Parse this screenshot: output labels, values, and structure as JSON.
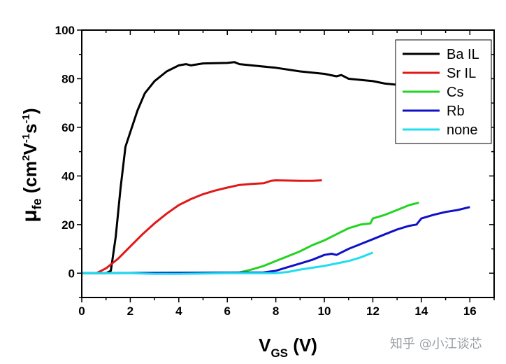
{
  "chart_data": {
    "type": "line",
    "title": "",
    "xlabel": {
      "main": "V",
      "sub": "GS",
      "unit": " (V)"
    },
    "ylabel": {
      "mu": "μ",
      "sub": "fe",
      "open": " (cm",
      "sup2": "2",
      "v": "V",
      "supm1a": "-1",
      "s": "s",
      "supm1b": "-1",
      "close": ")"
    },
    "xlim": [
      0,
      17
    ],
    "ylim": [
      -10,
      100
    ],
    "xticks": [
      0,
      2,
      4,
      6,
      8,
      10,
      12,
      14,
      16
    ],
    "xtick_labels": [
      "0",
      "2",
      "4",
      "6",
      "8",
      "10",
      "12",
      "14",
      "16"
    ],
    "yticks": [
      0,
      20,
      40,
      60,
      80,
      100
    ],
    "ytick_labels": [
      "0",
      "20",
      "40",
      "60",
      "80",
      "100"
    ],
    "grid": false,
    "legend_position": "top-right",
    "series": [
      {
        "name": "Ba IL",
        "color": "#000000",
        "x": [
          0,
          1,
          1.2,
          1.4,
          1.6,
          1.8,
          2,
          2.3,
          2.6,
          3,
          3.5,
          4,
          4.3,
          4.5,
          5,
          6,
          6.3,
          6.5,
          7,
          8,
          9,
          10,
          10.5,
          10.7,
          11,
          12,
          12.5,
          13,
          13.3
        ],
        "y": [
          0,
          0,
          1,
          15,
          35,
          52,
          58,
          67,
          74,
          79,
          83,
          85.5,
          86,
          85.5,
          86.3,
          86.5,
          86.8,
          86,
          85.5,
          84.5,
          83,
          82,
          81,
          81.5,
          80,
          79,
          78,
          77.5,
          77
        ]
      },
      {
        "name": "Sr IL",
        "color": "#e01818",
        "x": [
          0.6,
          1,
          1.5,
          2,
          2.5,
          3,
          3.5,
          4,
          4.5,
          5,
          5.5,
          6,
          6.5,
          7,
          7.5,
          7.8,
          8,
          9,
          9.5,
          9.9
        ],
        "y": [
          0,
          2,
          6,
          11,
          16,
          20.5,
          24.5,
          28,
          30.5,
          32.5,
          34,
          35.2,
          36.3,
          36.7,
          37,
          38,
          38.2,
          38,
          38,
          38.2
        ]
      },
      {
        "name": "Cs",
        "color": "#22d422",
        "x": [
          0,
          6.5,
          7,
          7.5,
          8,
          8.5,
          9,
          9.5,
          10,
          10.5,
          11,
          11.5,
          11.9,
          12,
          12.5,
          13,
          13.5,
          13.9
        ],
        "y": [
          0,
          0.3,
          1.5,
          3,
          5,
          7,
          9,
          11.5,
          13.5,
          16,
          18.5,
          20,
          20.5,
          22.5,
          24,
          26,
          28,
          29
        ]
      },
      {
        "name": "Rb",
        "color": "#1010c8",
        "x": [
          0,
          7.5,
          8,
          8.5,
          9,
          9.5,
          10,
          10.3,
          10.5,
          11,
          11.5,
          12,
          12.5,
          13,
          13.5,
          13.8,
          14,
          14.5,
          15,
          15.5,
          16
        ],
        "y": [
          0,
          0.3,
          1,
          2.5,
          4,
          5.5,
          7.5,
          8,
          7.5,
          10,
          12,
          14,
          16,
          18,
          19.5,
          20,
          22.5,
          24,
          25.2,
          26,
          27.2
        ]
      },
      {
        "name": "none",
        "color": "#22ddee",
        "x": [
          0,
          2,
          3,
          4,
          6,
          8,
          8.5,
          9,
          10,
          11,
          11.5,
          12
        ],
        "y": [
          0,
          0,
          -0.3,
          -0.3,
          0,
          0,
          0.5,
          1.5,
          3,
          5,
          6.5,
          8.5
        ]
      }
    ]
  },
  "watermark": "知乎 @小江谈芯"
}
